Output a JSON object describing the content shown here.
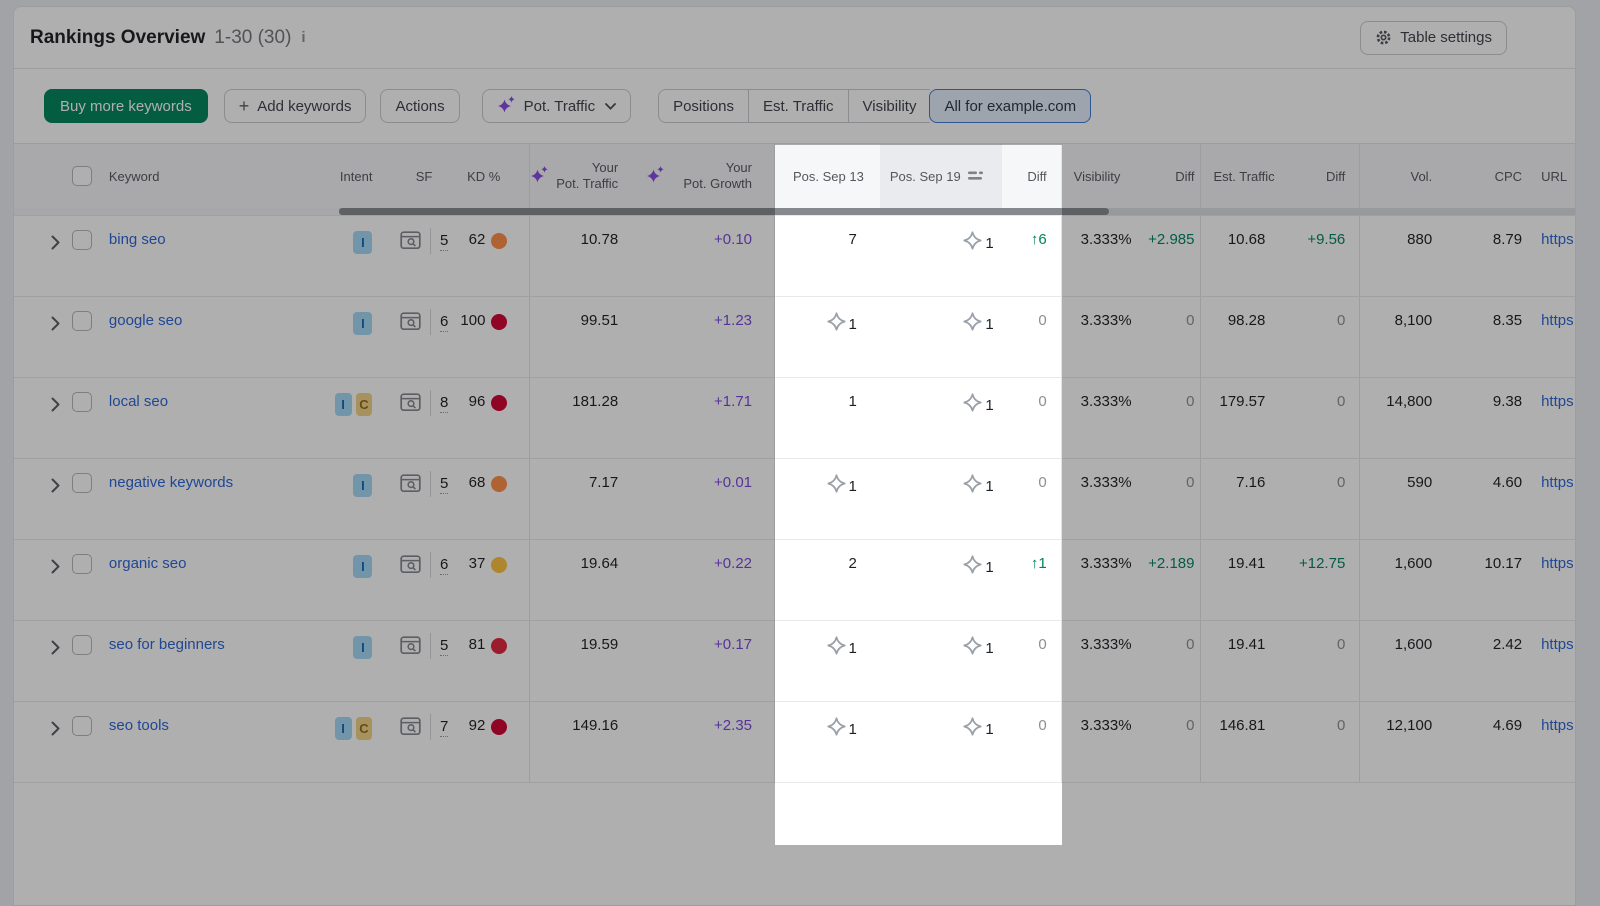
{
  "header": {
    "title": "Rankings Overview",
    "range": "1-30 (30)",
    "table_settings": "Table settings"
  },
  "toolbar": {
    "buy": "Buy more keywords",
    "add": "Add keywords",
    "actions": "Actions",
    "metric": "Pot. Traffic",
    "views": [
      "Positions",
      "Est. Traffic",
      "Visibility",
      "All for example.com"
    ],
    "selected_view": "All for example.com"
  },
  "table": {
    "columns": {
      "keyword": "Keyword",
      "intent": "Intent",
      "sf": "SF",
      "kd": "KD %",
      "pot_traffic": [
        "Your",
        "Pot. Traffic"
      ],
      "pot_growth": [
        "Your",
        "Pot. Growth"
      ],
      "pos_a": "Pos. Sep 13",
      "pos_b": "Pos. Sep 19",
      "diff": "Diff",
      "visibility": "Visibility",
      "diff2": "Diff",
      "est_traffic": "Est. Traffic",
      "diff3": "Diff",
      "volume": "Vol.",
      "cpc": "CPC",
      "url": "URL"
    },
    "sorted_column": "Pos. Sep 19",
    "rows": [
      {
        "keyword": "bing seo",
        "intents": [
          "I"
        ],
        "sf": "5",
        "kd": "62",
        "kd_color": "#ff8c43",
        "pot_traffic": "10.78",
        "pot_growth": "+0.10",
        "pos_a": "7",
        "pos_a_ai": false,
        "pos_b": "1",
        "pos_b_ai": true,
        "diff": "↑6",
        "visibility": "3.333%",
        "vis_diff": "+2.985",
        "est_traffic": "10.68",
        "est_diff": "+9.56",
        "volume": "880",
        "cpc": "8.79",
        "url": "https"
      },
      {
        "keyword": "google seo",
        "intents": [
          "I"
        ],
        "sf": "6",
        "kd": "100",
        "kd_color": "#d1002f",
        "pot_traffic": "99.51",
        "pot_growth": "+1.23",
        "pos_a": "1",
        "pos_a_ai": true,
        "pos_b": "1",
        "pos_b_ai": true,
        "diff": "0",
        "visibility": "3.333%",
        "vis_diff": "0",
        "est_traffic": "98.28",
        "est_diff": "0",
        "volume": "8,100",
        "cpc": "8.35",
        "url": "https"
      },
      {
        "keyword": "local seo",
        "intents": [
          "I",
          "C"
        ],
        "sf": "8",
        "kd": "96",
        "kd_color": "#d1002f",
        "pot_traffic": "181.28",
        "pot_growth": "+1.71",
        "pos_a": "1",
        "pos_a_ai": false,
        "pos_b": "1",
        "pos_b_ai": true,
        "diff": "0",
        "visibility": "3.333%",
        "vis_diff": "0",
        "est_traffic": "179.57",
        "est_diff": "0",
        "volume": "14,800",
        "cpc": "9.38",
        "url": "https"
      },
      {
        "keyword": "negative keywords",
        "intents": [
          "I"
        ],
        "sf": "5",
        "kd": "68",
        "kd_color": "#ff8c43",
        "pot_traffic": "7.17",
        "pot_growth": "+0.01",
        "pos_a": "1",
        "pos_a_ai": true,
        "pos_b": "1",
        "pos_b_ai": true,
        "diff": "0",
        "visibility": "3.333%",
        "vis_diff": "0",
        "est_traffic": "7.16",
        "est_diff": "0",
        "volume": "590",
        "cpc": "4.60",
        "url": "https"
      },
      {
        "keyword": "organic seo",
        "intents": [
          "I"
        ],
        "sf": "6",
        "kd": "37",
        "kd_color": "#fdc23c",
        "pot_traffic": "19.64",
        "pot_growth": "+0.22",
        "pos_a": "2",
        "pos_a_ai": false,
        "pos_b": "1",
        "pos_b_ai": true,
        "diff": "↑1",
        "visibility": "3.333%",
        "vis_diff": "+2.189",
        "est_traffic": "19.41",
        "est_diff": "+12.75",
        "volume": "1,600",
        "cpc": "10.17",
        "url": "https"
      },
      {
        "keyword": "seo for beginners",
        "intents": [
          "I"
        ],
        "sf": "5",
        "kd": "81",
        "kd_color": "#e0243d",
        "pot_traffic": "19.59",
        "pot_growth": "+0.17",
        "pos_a": "1",
        "pos_a_ai": true,
        "pos_b": "1",
        "pos_b_ai": true,
        "diff": "0",
        "visibility": "3.333%",
        "vis_diff": "0",
        "est_traffic": "19.41",
        "est_diff": "0",
        "volume": "1,600",
        "cpc": "2.42",
        "url": "https"
      },
      {
        "keyword": "seo tools",
        "intents": [
          "I",
          "C"
        ],
        "sf": "7",
        "kd": "92",
        "kd_color": "#d1002f",
        "pot_traffic": "149.16",
        "pot_growth": "+2.35",
        "pos_a": "1",
        "pos_a_ai": true,
        "pos_b": "1",
        "pos_b_ai": true,
        "diff": "0",
        "visibility": "3.333%",
        "vis_diff": "0",
        "est_traffic": "146.81",
        "est_diff": "0",
        "volume": "12,100",
        "cpc": "4.69",
        "url": "https"
      }
    ]
  },
  "colors": {
    "accent_green": "#008558",
    "positive": "#00835f",
    "potential_purple": "#7d45dd",
    "link_blue": "#2a65d4",
    "selected_view_border": "#3a7bd5"
  }
}
